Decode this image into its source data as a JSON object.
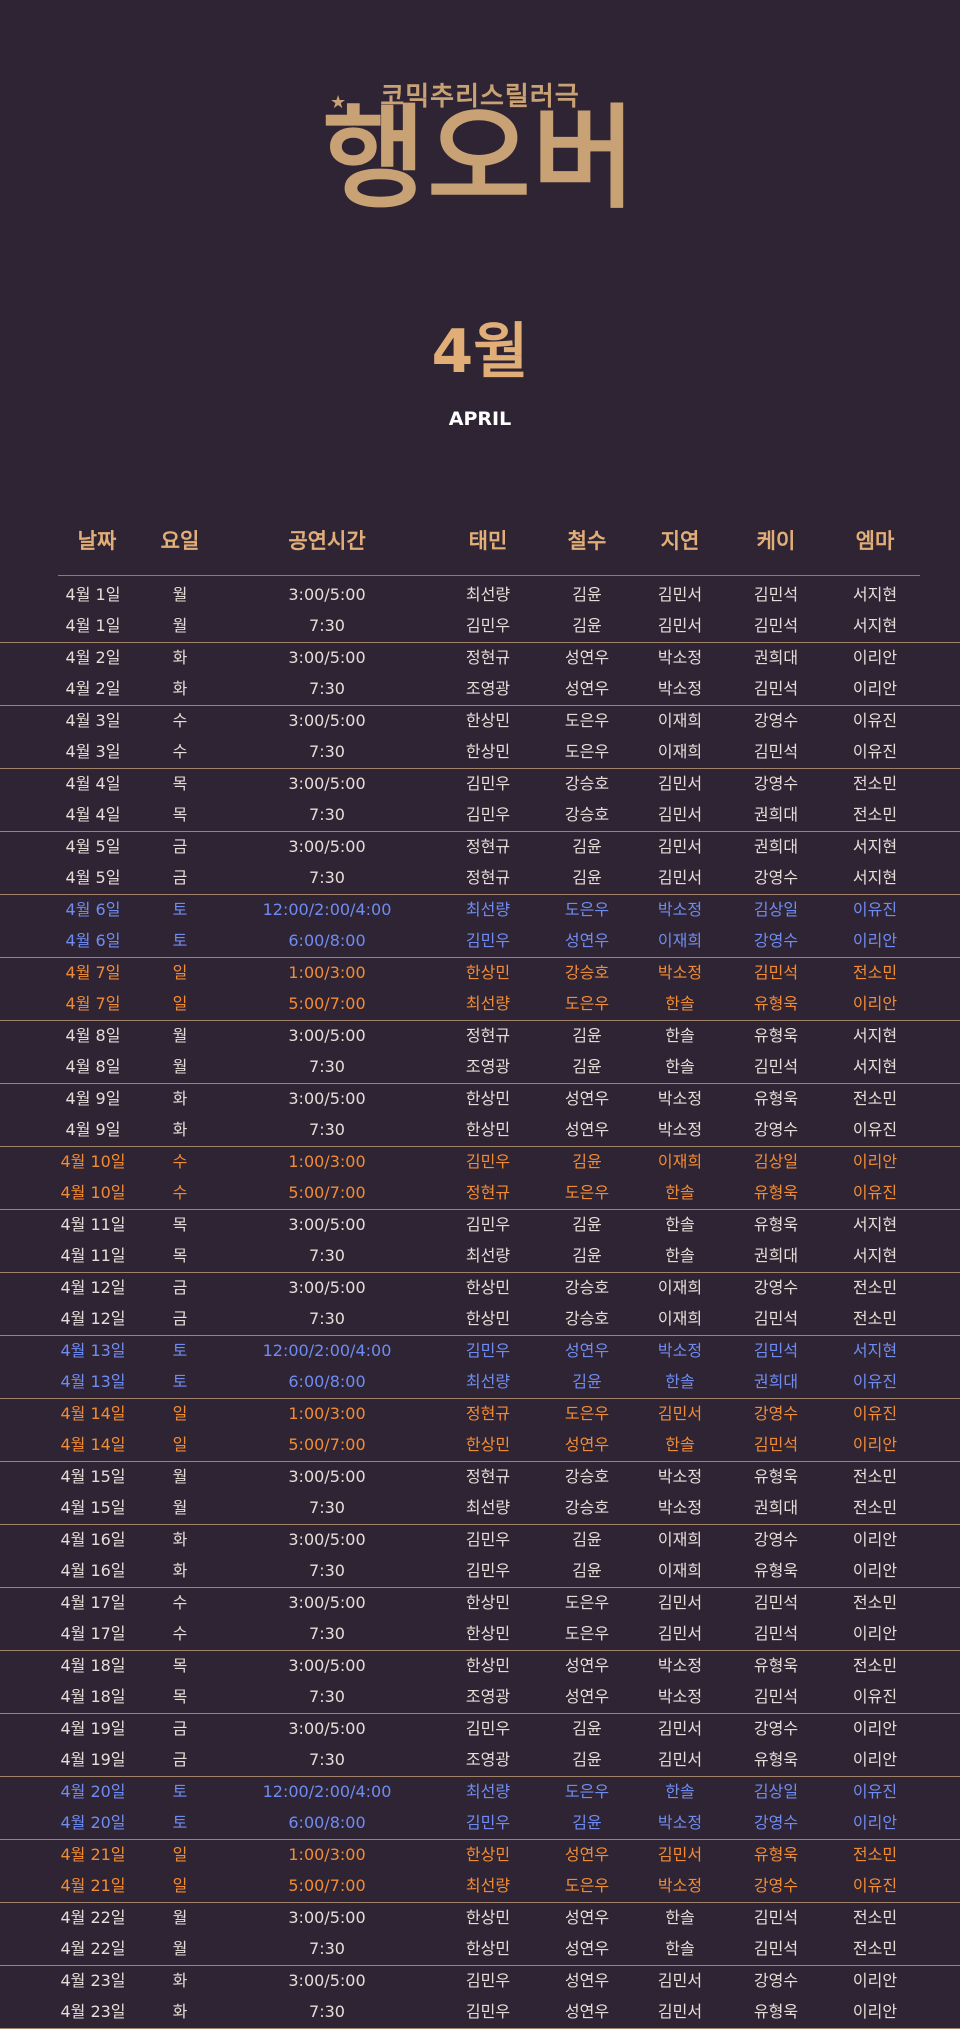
{
  "header": {
    "subtitle": "코믹추리스릴러극",
    "logo": "행오버",
    "month": "4월",
    "month_en": "APRIL"
  },
  "colors": {
    "background": "#2f2433",
    "gold": "#c8a274",
    "header_text": "#e1ae78",
    "saturday": "#6f8cf2",
    "sunday": "#f28c34",
    "normal": "#e6ddd8"
  },
  "table": {
    "columns": [
      "날짜",
      "요일",
      "공연시간",
      "태민",
      "철수",
      "지연",
      "케이",
      "엠마"
    ],
    "rows": [
      {
        "date": "4월 1일",
        "day": "월",
        "time": "3:00/5:00",
        "taemin": "최선량",
        "cheolsu": "김윤",
        "jiyeon": "김민서",
        "kei": "김민석",
        "emma": "서지현",
        "type": "normal"
      },
      {
        "date": "4월 1일",
        "day": "월",
        "time": "7:30",
        "taemin": "김민우",
        "cheolsu": "김윤",
        "jiyeon": "김민서",
        "kei": "김민석",
        "emma": "서지현",
        "type": "normal"
      },
      {
        "date": "4월 2일",
        "day": "화",
        "time": "3:00/5:00",
        "taemin": "정현규",
        "cheolsu": "성연우",
        "jiyeon": "박소정",
        "kei": "권희대",
        "emma": "이리안",
        "type": "normal"
      },
      {
        "date": "4월 2일",
        "day": "화",
        "time": "7:30",
        "taemin": "조영광",
        "cheolsu": "성연우",
        "jiyeon": "박소정",
        "kei": "김민석",
        "emma": "이리안",
        "type": "normal"
      },
      {
        "date": "4월 3일",
        "day": "수",
        "time": "3:00/5:00",
        "taemin": "한상민",
        "cheolsu": "도은우",
        "jiyeon": "이재희",
        "kei": "강영수",
        "emma": "이유진",
        "type": "normal"
      },
      {
        "date": "4월 3일",
        "day": "수",
        "time": "7:30",
        "taemin": "한상민",
        "cheolsu": "도은우",
        "jiyeon": "이재희",
        "kei": "김민석",
        "emma": "이유진",
        "type": "normal"
      },
      {
        "date": "4월 4일",
        "day": "목",
        "time": "3:00/5:00",
        "taemin": "김민우",
        "cheolsu": "강승호",
        "jiyeon": "김민서",
        "kei": "강영수",
        "emma": "전소민",
        "type": "normal"
      },
      {
        "date": "4월 4일",
        "day": "목",
        "time": "7:30",
        "taemin": "김민우",
        "cheolsu": "강승호",
        "jiyeon": "김민서",
        "kei": "권희대",
        "emma": "전소민",
        "type": "normal"
      },
      {
        "date": "4월 5일",
        "day": "금",
        "time": "3:00/5:00",
        "taemin": "정현규",
        "cheolsu": "김윤",
        "jiyeon": "김민서",
        "kei": "권희대",
        "emma": "서지현",
        "type": "normal"
      },
      {
        "date": "4월 5일",
        "day": "금",
        "time": "7:30",
        "taemin": "정현규",
        "cheolsu": "김윤",
        "jiyeon": "김민서",
        "kei": "강영수",
        "emma": "서지현",
        "type": "normal"
      },
      {
        "date": "4월 6일",
        "day": "토",
        "time": "12:00/2:00/4:00",
        "taemin": "최선량",
        "cheolsu": "도은우",
        "jiyeon": "박소정",
        "kei": "김상일",
        "emma": "이유진",
        "type": "weekend-sat"
      },
      {
        "date": "4월 6일",
        "day": "토",
        "time": "6:00/8:00",
        "taemin": "김민우",
        "cheolsu": "성연우",
        "jiyeon": "이재희",
        "kei": "강영수",
        "emma": "이리안",
        "type": "weekend-sat"
      },
      {
        "date": "4월 7일",
        "day": "일",
        "time": "1:00/3:00",
        "taemin": "한상민",
        "cheolsu": "강승호",
        "jiyeon": "박소정",
        "kei": "김민석",
        "emma": "전소민",
        "type": "weekend-sun"
      },
      {
        "date": "4월 7일",
        "day": "일",
        "time": "5:00/7:00",
        "taemin": "최선량",
        "cheolsu": "도은우",
        "jiyeon": "한솔",
        "kei": "유형욱",
        "emma": "이리안",
        "type": "weekend-sun"
      },
      {
        "date": "4월 8일",
        "day": "월",
        "time": "3:00/5:00",
        "taemin": "정현규",
        "cheolsu": "김윤",
        "jiyeon": "한솔",
        "kei": "유형욱",
        "emma": "서지현",
        "type": "normal"
      },
      {
        "date": "4월 8일",
        "day": "월",
        "time": "7:30",
        "taemin": "조영광",
        "cheolsu": "김윤",
        "jiyeon": "한솔",
        "kei": "김민석",
        "emma": "서지현",
        "type": "normal"
      },
      {
        "date": "4월 9일",
        "day": "화",
        "time": "3:00/5:00",
        "taemin": "한상민",
        "cheolsu": "성연우",
        "jiyeon": "박소정",
        "kei": "유형욱",
        "emma": "전소민",
        "type": "normal"
      },
      {
        "date": "4월 9일",
        "day": "화",
        "time": "7:30",
        "taemin": "한상민",
        "cheolsu": "성연우",
        "jiyeon": "박소정",
        "kei": "강영수",
        "emma": "이유진",
        "type": "normal"
      },
      {
        "date": "4월 10일",
        "day": "수",
        "time": "1:00/3:00",
        "taemin": "김민우",
        "cheolsu": "김윤",
        "jiyeon": "이재희",
        "kei": "김상일",
        "emma": "이리안",
        "type": "weekend-sun"
      },
      {
        "date": "4월 10일",
        "day": "수",
        "time": "5:00/7:00",
        "taemin": "정현규",
        "cheolsu": "도은우",
        "jiyeon": "한솔",
        "kei": "유형욱",
        "emma": "이유진",
        "type": "weekend-sun"
      },
      {
        "date": "4월 11일",
        "day": "목",
        "time": "3:00/5:00",
        "taemin": "김민우",
        "cheolsu": "김윤",
        "jiyeon": "한솔",
        "kei": "유형욱",
        "emma": "서지현",
        "type": "normal"
      },
      {
        "date": "4월 11일",
        "day": "목",
        "time": "7:30",
        "taemin": "최선량",
        "cheolsu": "김윤",
        "jiyeon": "한솔",
        "kei": "권희대",
        "emma": "서지현",
        "type": "normal"
      },
      {
        "date": "4월 12일",
        "day": "금",
        "time": "3:00/5:00",
        "taemin": "한상민",
        "cheolsu": "강승호",
        "jiyeon": "이재희",
        "kei": "강영수",
        "emma": "전소민",
        "type": "normal"
      },
      {
        "date": "4월 12일",
        "day": "금",
        "time": "7:30",
        "taemin": "한상민",
        "cheolsu": "강승호",
        "jiyeon": "이재희",
        "kei": "김민석",
        "emma": "전소민",
        "type": "normal"
      },
      {
        "date": "4월 13일",
        "day": "토",
        "time": "12:00/2:00/4:00",
        "taemin": "김민우",
        "cheolsu": "성연우",
        "jiyeon": "박소정",
        "kei": "김민석",
        "emma": "서지현",
        "type": "weekend-sat"
      },
      {
        "date": "4월 13일",
        "day": "토",
        "time": "6:00/8:00",
        "taemin": "최선량",
        "cheolsu": "김윤",
        "jiyeon": "한솔",
        "kei": "권희대",
        "emma": "이유진",
        "type": "weekend-sat"
      },
      {
        "date": "4월 14일",
        "day": "일",
        "time": "1:00/3:00",
        "taemin": "정현규",
        "cheolsu": "도은우",
        "jiyeon": "김민서",
        "kei": "강영수",
        "emma": "이유진",
        "type": "weekend-sun"
      },
      {
        "date": "4월 14일",
        "day": "일",
        "time": "5:00/7:00",
        "taemin": "한상민",
        "cheolsu": "성연우",
        "jiyeon": "한솔",
        "kei": "김민석",
        "emma": "이리안",
        "type": "weekend-sun"
      },
      {
        "date": "4월 15일",
        "day": "월",
        "time": "3:00/5:00",
        "taemin": "정현규",
        "cheolsu": "강승호",
        "jiyeon": "박소정",
        "kei": "유형욱",
        "emma": "전소민",
        "type": "normal"
      },
      {
        "date": "4월 15일",
        "day": "월",
        "time": "7:30",
        "taemin": "최선량",
        "cheolsu": "강승호",
        "jiyeon": "박소정",
        "kei": "권희대",
        "emma": "전소민",
        "type": "normal"
      },
      {
        "date": "4월 16일",
        "day": "화",
        "time": "3:00/5:00",
        "taemin": "김민우",
        "cheolsu": "김윤",
        "jiyeon": "이재희",
        "kei": "강영수",
        "emma": "이리안",
        "type": "normal"
      },
      {
        "date": "4월 16일",
        "day": "화",
        "time": "7:30",
        "taemin": "김민우",
        "cheolsu": "김윤",
        "jiyeon": "이재희",
        "kei": "유형욱",
        "emma": "이리안",
        "type": "normal"
      },
      {
        "date": "4월 17일",
        "day": "수",
        "time": "3:00/5:00",
        "taemin": "한상민",
        "cheolsu": "도은우",
        "jiyeon": "김민서",
        "kei": "김민석",
        "emma": "전소민",
        "type": "normal"
      },
      {
        "date": "4월 17일",
        "day": "수",
        "time": "7:30",
        "taemin": "한상민",
        "cheolsu": "도은우",
        "jiyeon": "김민서",
        "kei": "김민석",
        "emma": "이리안",
        "type": "normal"
      },
      {
        "date": "4월 18일",
        "day": "목",
        "time": "3:00/5:00",
        "taemin": "한상민",
        "cheolsu": "성연우",
        "jiyeon": "박소정",
        "kei": "유형욱",
        "emma": "전소민",
        "type": "normal"
      },
      {
        "date": "4월 18일",
        "day": "목",
        "time": "7:30",
        "taemin": "조영광",
        "cheolsu": "성연우",
        "jiyeon": "박소정",
        "kei": "김민석",
        "emma": "이유진",
        "type": "normal"
      },
      {
        "date": "4월 19일",
        "day": "금",
        "time": "3:00/5:00",
        "taemin": "김민우",
        "cheolsu": "김윤",
        "jiyeon": "김민서",
        "kei": "강영수",
        "emma": "이리안",
        "type": "normal"
      },
      {
        "date": "4월 19일",
        "day": "금",
        "time": "7:30",
        "taemin": "조영광",
        "cheolsu": "김윤",
        "jiyeon": "김민서",
        "kei": "유형욱",
        "emma": "이리안",
        "type": "normal"
      },
      {
        "date": "4월 20일",
        "day": "토",
        "time": "12:00/2:00/4:00",
        "taemin": "최선량",
        "cheolsu": "도은우",
        "jiyeon": "한솔",
        "kei": "김상일",
        "emma": "이유진",
        "type": "weekend-sat"
      },
      {
        "date": "4월 20일",
        "day": "토",
        "time": "6:00/8:00",
        "taemin": "김민우",
        "cheolsu": "김윤",
        "jiyeon": "박소정",
        "kei": "강영수",
        "emma": "이리안",
        "type": "weekend-sat"
      },
      {
        "date": "4월 21일",
        "day": "일",
        "time": "1:00/3:00",
        "taemin": "한상민",
        "cheolsu": "성연우",
        "jiyeon": "김민서",
        "kei": "유형욱",
        "emma": "전소민",
        "type": "weekend-sun"
      },
      {
        "date": "4월 21일",
        "day": "일",
        "time": "5:00/7:00",
        "taemin": "최선량",
        "cheolsu": "도은우",
        "jiyeon": "박소정",
        "kei": "강영수",
        "emma": "이유진",
        "type": "weekend-sun"
      },
      {
        "date": "4월 22일",
        "day": "월",
        "time": "3:00/5:00",
        "taemin": "한상민",
        "cheolsu": "성연우",
        "jiyeon": "한솔",
        "kei": "김민석",
        "emma": "전소민",
        "type": "normal"
      },
      {
        "date": "4월 22일",
        "day": "월",
        "time": "7:30",
        "taemin": "한상민",
        "cheolsu": "성연우",
        "jiyeon": "한솔",
        "kei": "김민석",
        "emma": "전소민",
        "type": "normal"
      },
      {
        "date": "4월 23일",
        "day": "화",
        "time": "3:00/5:00",
        "taemin": "김민우",
        "cheolsu": "성연우",
        "jiyeon": "김민서",
        "kei": "강영수",
        "emma": "이리안",
        "type": "normal"
      },
      {
        "date": "4월 23일",
        "day": "화",
        "time": "7:30",
        "taemin": "김민우",
        "cheolsu": "성연우",
        "jiyeon": "김민서",
        "kei": "유형욱",
        "emma": "이리안",
        "type": "normal"
      }
    ]
  }
}
